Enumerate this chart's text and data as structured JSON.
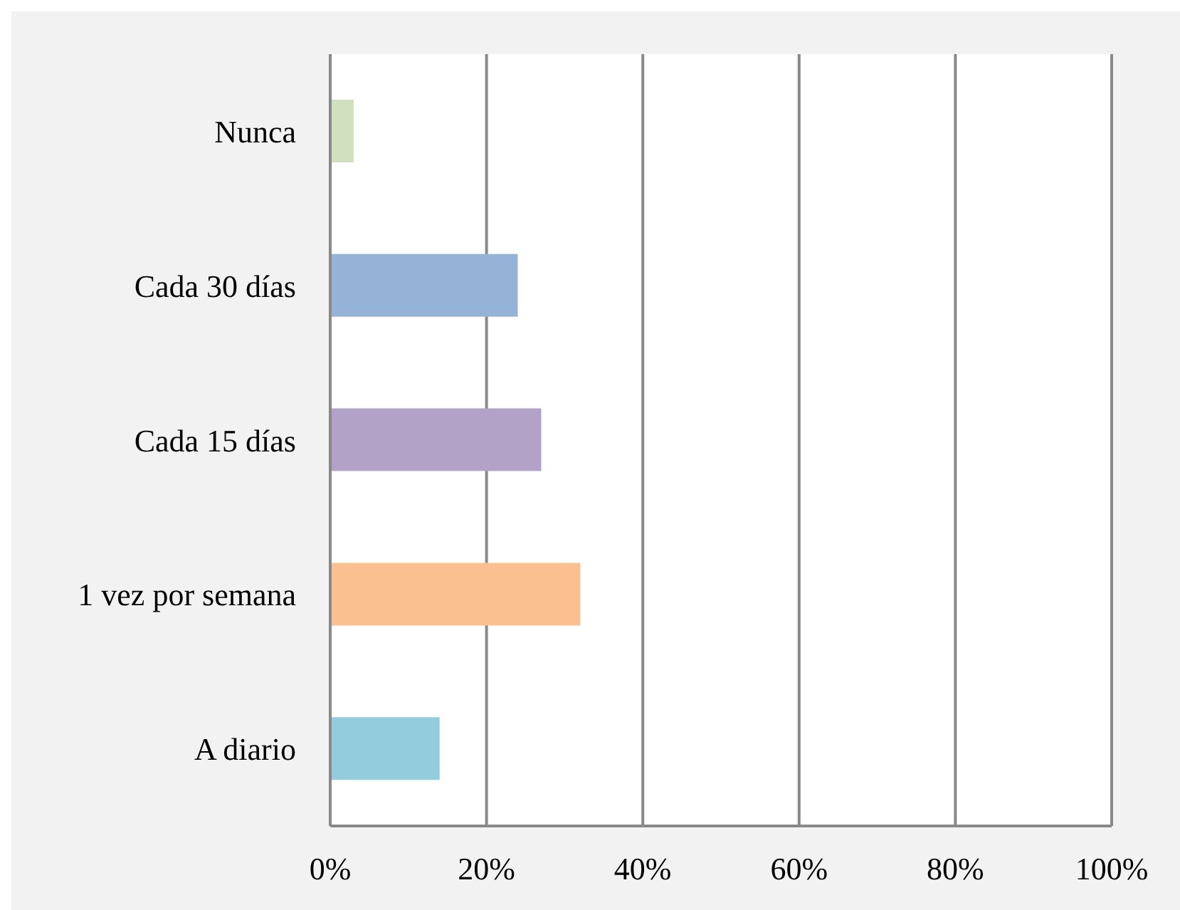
{
  "chart_data": {
    "type": "bar",
    "orientation": "horizontal",
    "categories": [
      "Nunca",
      "Cada 30 días",
      "Cada 15 días",
      "1 vez por semana",
      "A diario"
    ],
    "values": [
      3,
      24,
      27,
      32,
      14
    ],
    "colors": [
      "#d0dfbe",
      "#95b3d7",
      "#b3a2c7",
      "#fac090",
      "#93cddd"
    ],
    "xlim": [
      0,
      100
    ],
    "xticks": [
      {
        "value": 0,
        "label": "0%"
      },
      {
        "value": 20,
        "label": "20%"
      },
      {
        "value": 40,
        "label": "40%"
      },
      {
        "value": 60,
        "label": "60%"
      },
      {
        "value": 80,
        "label": "80%"
      },
      {
        "value": 100,
        "label": "100%"
      }
    ],
    "grid": "x"
  }
}
